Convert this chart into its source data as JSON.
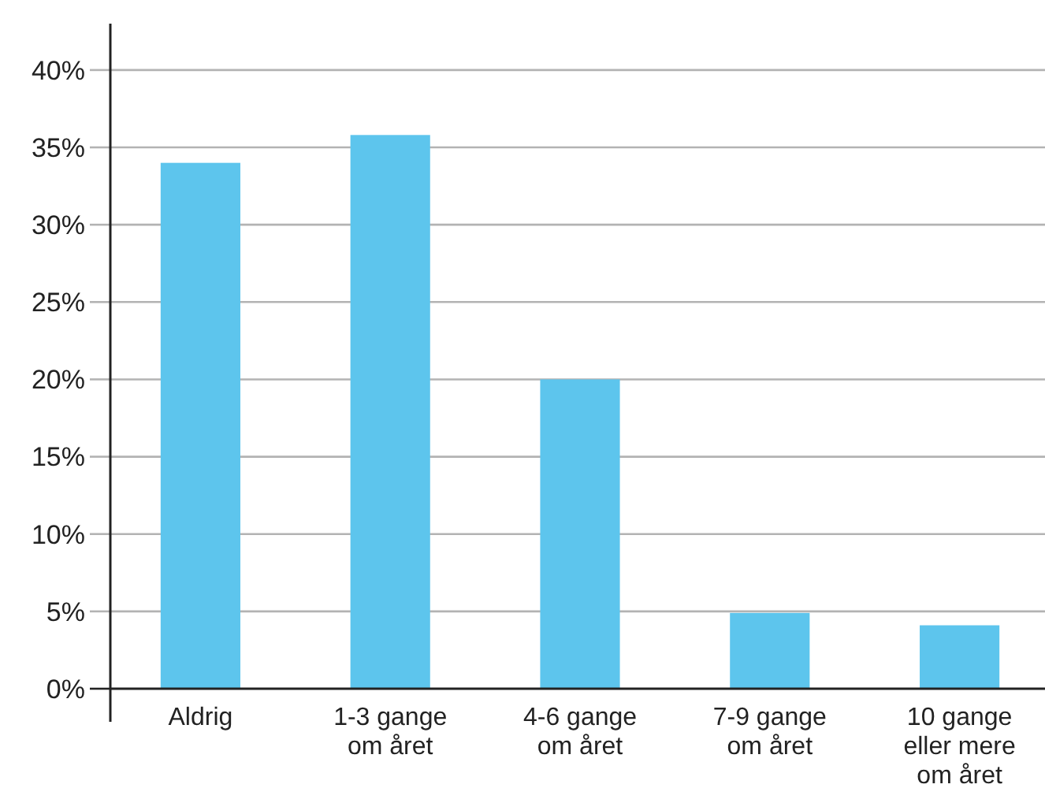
{
  "chart_data": {
    "type": "bar",
    "categories": [
      "Aldrig",
      "1-3 gange om året",
      "4-6 gange om året",
      "7-9 gange om året",
      "10 gange eller mere om året"
    ],
    "values": [
      34,
      35.8,
      20,
      4.9,
      4.1
    ],
    "color": "#5dc5ed",
    "ylim": [
      0,
      43
    ],
    "yticks": [
      {
        "value": 0,
        "label": "0%"
      },
      {
        "value": 5,
        "label": "5%"
      },
      {
        "value": 10,
        "label": "10%"
      },
      {
        "value": 15,
        "label": "15%"
      },
      {
        "value": 20,
        "label": "20%"
      },
      {
        "value": 25,
        "label": "25%"
      },
      {
        "value": 30,
        "label": "30%"
      },
      {
        "value": 35,
        "label": "35%"
      },
      {
        "value": 40,
        "label": "40%"
      }
    ],
    "grid": "y"
  }
}
